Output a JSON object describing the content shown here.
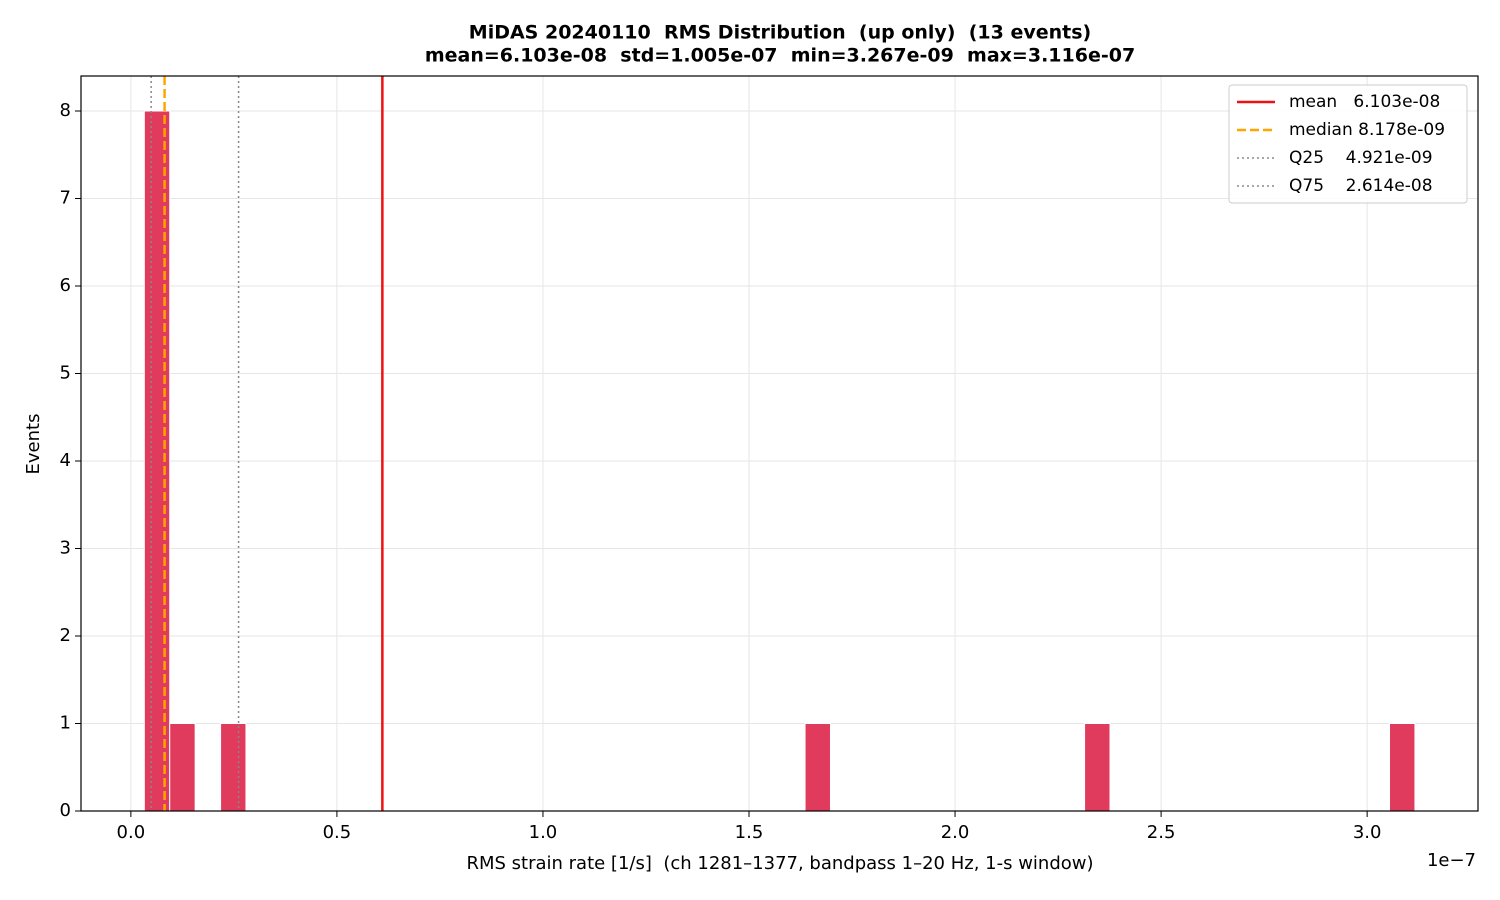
{
  "chart_data": {
    "type": "histogram",
    "title": "MiDAS 20240110  RMS Distribution  (up only)  (13 events)",
    "subtitle": "mean=6.103e-08  std=1.005e-07  min=3.267e-09  max=3.116e-07",
    "x_label": "RMS strain rate [1/s]  (ch 1281–1377, bandpass 1–20 Hz, 1-s window)",
    "x_offset_label": "1e−7",
    "y_label": "Events",
    "color": "#e03a5c",
    "bins": [
      0.0327,
      0.0943,
      0.156,
      0.2177,
      0.2793,
      0.341,
      0.4027,
      0.4643,
      0.526,
      0.5877,
      0.6493,
      0.711,
      0.7727,
      0.8343,
      0.896,
      0.9577,
      1.0193,
      1.081,
      1.1427,
      1.2043,
      1.266,
      1.3277,
      1.3893,
      1.451,
      1.5127,
      1.5743,
      1.636,
      1.6977,
      1.7593,
      1.821,
      1.8827,
      1.9443,
      2.006,
      2.0677,
      2.1293,
      2.191,
      2.2527,
      2.3143,
      2.376,
      2.4377,
      2.4993,
      2.561,
      2.6227,
      2.6843,
      2.746,
      2.8077,
      2.8693,
      2.931,
      2.9927,
      3.0543,
      3.116
    ],
    "counts": [
      8,
      1,
      0,
      1,
      0,
      0,
      0,
      0,
      0,
      0,
      0,
      0,
      0,
      0,
      0,
      0,
      0,
      0,
      0,
      0,
      0,
      0,
      0,
      0,
      0,
      0,
      1,
      0,
      0,
      0,
      0,
      0,
      0,
      0,
      0,
      0,
      0,
      1,
      0,
      0,
      0,
      0,
      0,
      0,
      0,
      0,
      0,
      0,
      0,
      1
    ],
    "reference_lines": [
      {
        "name": "mean   6.103e-08",
        "value": 0.6103,
        "color": "#ee1111",
        "style": "solid"
      },
      {
        "name": "median 8.178e-09",
        "value": 0.08178,
        "color": "#ffa500",
        "style": "dashed"
      },
      {
        "name": "Q25    4.921e-09",
        "value": 0.04921,
        "color": "#888888",
        "style": "dotted"
      },
      {
        "name": "Q75    2.614e-08",
        "value": 0.2614,
        "color": "#888888",
        "style": "dotted"
      }
    ],
    "xlim": [
      -0.121,
      3.269
    ],
    "ylim": [
      0,
      8.4
    ],
    "xticks": [
      {
        "value": 0,
        "label": "0.0"
      },
      0.5,
      {
        "value": 1,
        "label": "1.0"
      },
      1.5,
      {
        "value": 2,
        "label": "2.0"
      },
      2.5,
      {
        "value": 3,
        "label": "3.0"
      }
    ],
    "yticks": [
      0,
      1,
      2,
      3,
      4,
      5,
      6,
      7,
      8
    ],
    "grid": true,
    "legend_position": "upper-right"
  }
}
